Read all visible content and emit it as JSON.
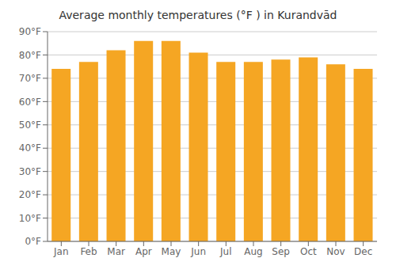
{
  "chart_data": {
    "type": "bar",
    "title": "Average monthly temperatures (°F ) in Kurandvād",
    "categories": [
      "Jan",
      "Feb",
      "Mar",
      "Apr",
      "May",
      "Jun",
      "Jul",
      "Aug",
      "Sep",
      "Oct",
      "Nov",
      "Dec"
    ],
    "values": [
      74,
      77,
      82,
      86,
      86,
      81,
      77,
      77,
      78,
      79,
      76,
      74
    ],
    "color": "#F5A623",
    "ylim": [
      0,
      90
    ],
    "yticks": [
      {
        "value": 0,
        "label": "0°F"
      },
      {
        "value": 10,
        "label": "10°F"
      },
      {
        "value": 20,
        "label": "20°F"
      },
      {
        "value": 30,
        "label": "30°F"
      },
      {
        "value": 40,
        "label": "40°F"
      },
      {
        "value": 50,
        "label": "50°F"
      },
      {
        "value": 60,
        "label": "60°F"
      },
      {
        "value": 70,
        "label": "70°F"
      },
      {
        "value": 80,
        "label": "80°F"
      },
      {
        "value": 90,
        "label": "90°F"
      }
    ],
    "grid": true
  }
}
